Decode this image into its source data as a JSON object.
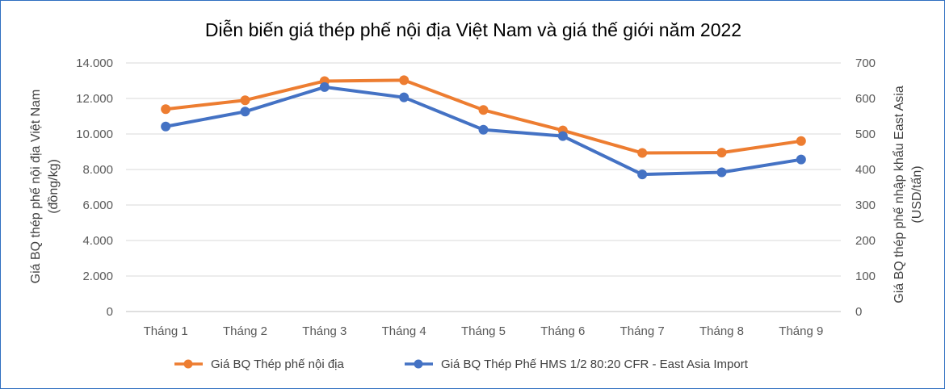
{
  "chart_data": {
    "type": "line",
    "title": "Diễn biến giá thép phế nội địa Việt Nam và giá thế giới năm 2022",
    "categories": [
      "Tháng 1",
      "Tháng 2",
      "Tháng 3",
      "Tháng 4",
      "Tháng 5",
      "Tháng 6",
      "Tháng 7",
      "Tháng 8",
      "Tháng 9"
    ],
    "ylabel": [
      "Giá BQ thép phế nội địa Việt Nam",
      "(đồng/kg)"
    ],
    "y2label": [
      "Giá BQ thép phế nhập khẩu East Asia",
      "(USD/tấn)"
    ],
    "ylim": [
      0,
      14000
    ],
    "y2lim": [
      0,
      700
    ],
    "yticks": [
      "0",
      "2.000",
      "4.000",
      "6.000",
      "8.000",
      "10.000",
      "12.000",
      "14.000"
    ],
    "y2ticks": [
      "0",
      "100",
      "200",
      "300",
      "400",
      "500",
      "600",
      "700"
    ],
    "grid": true,
    "legend_position": "bottom",
    "series": [
      {
        "name": "Giá BQ Thép phế nội địa",
        "axis": "left",
        "color": "#ED7D31",
        "values": [
          11400,
          11900,
          12980,
          13030,
          11350,
          10200,
          8930,
          8950,
          9600
        ]
      },
      {
        "name": "Giá BQ Thép Phế HMS 1/2 80:20 CFR - East Asia Import",
        "axis": "right",
        "color": "#4472C4",
        "values": [
          521,
          563,
          632,
          603,
          512,
          494,
          386,
          392,
          428
        ]
      }
    ]
  }
}
